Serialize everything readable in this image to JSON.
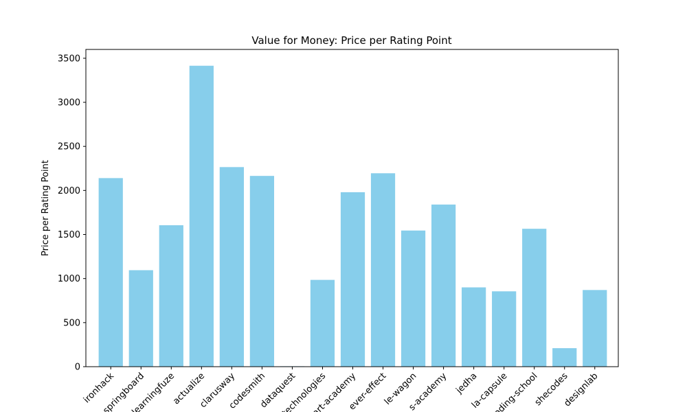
{
  "chart_data": {
    "type": "bar",
    "title": "Value for Money: Price per Rating Point",
    "xlabel": "",
    "ylabel": "Price per Rating Point",
    "categories": [
      "ironhack",
      "springboard",
      "learningfuze",
      "actualize",
      "clarusway",
      "codesmith",
      "dataquest",
      "technologies",
      "art-academy",
      "ever-effect",
      "le-wagon",
      "s-academy",
      "jedha",
      "la-capsule",
      "coding-school",
      "shecodes",
      "designlab"
    ],
    "values": [
      2140,
      1095,
      1605,
      3415,
      2265,
      2165,
      5,
      985,
      1980,
      2195,
      1545,
      1840,
      900,
      855,
      1565,
      210,
      870
    ],
    "ylim": [
      0,
      3600
    ],
    "yticks": [
      0,
      500,
      1000,
      1500,
      2000,
      2500,
      3000,
      3500
    ],
    "bar_color": "#87ceeb",
    "grid": false
  }
}
